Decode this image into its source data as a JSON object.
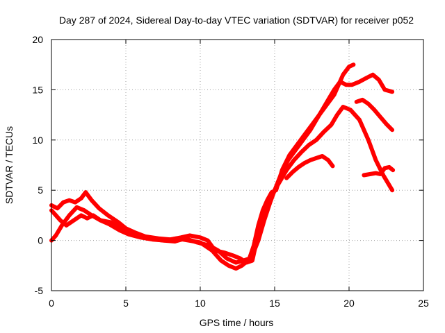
{
  "chart_data": {
    "type": "scatter",
    "title": "Day 287 of 2024, Sidereal Day-to-day VTEC variation (SDTVAR) for receiver p052",
    "xlabel": "GPS time / hours",
    "ylabel": "SDTVAR / TECUs",
    "xlim": [
      0,
      25
    ],
    "ylim": [
      -5,
      20
    ],
    "xticks": [
      "0",
      "5",
      "10",
      "15",
      "20",
      "25"
    ],
    "yticks": [
      "-5",
      "0",
      "5",
      "10",
      "15",
      "20"
    ],
    "xtick_values": [
      0,
      5,
      10,
      15,
      20,
      25
    ],
    "ytick_values": [
      -5,
      0,
      5,
      10,
      15,
      20
    ],
    "grid": true,
    "marker": "+",
    "color": "#ff0000",
    "series": [
      {
        "name": "track-1",
        "x": [
          0.0,
          0.3,
          0.7,
          1.2,
          1.7,
          2.2,
          2.7,
          3.3,
          4.0,
          4.7,
          5.5,
          6.5,
          7.5,
          8.3,
          9.0,
          9.8,
          10.6,
          11.2,
          11.8,
          12.4,
          12.9,
          13.3,
          13.6,
          13.9,
          14.2,
          14.5,
          14.8,
          15.1,
          15.5,
          16.0,
          16.5,
          17.0,
          17.5,
          18.0,
          18.5,
          19.0,
          19.3,
          19.6,
          20.0,
          20.3
        ],
        "y": [
          0.0,
          0.5,
          1.5,
          2.5,
          3.3,
          3.0,
          2.5,
          2.0,
          1.8,
          1.2,
          0.6,
          0.2,
          0.0,
          -0.1,
          0.2,
          -0.2,
          -0.5,
          -1.0,
          -1.8,
          -2.2,
          -2.0,
          -1.8,
          -0.5,
          1.5,
          3.0,
          4.0,
          4.8,
          5.0,
          7.0,
          8.5,
          9.5,
          10.5,
          11.5,
          12.5,
          13.5,
          14.5,
          15.5,
          16.5,
          17.3,
          17.5
        ]
      },
      {
        "name": "track-2",
        "x": [
          0.0,
          0.4,
          0.8,
          1.2,
          1.6,
          2.0,
          2.3,
          2.7,
          3.2,
          3.8,
          4.5,
          5.0,
          5.6,
          6.3,
          7.2,
          8.0,
          8.7,
          9.3,
          10.0,
          10.5,
          11.0,
          11.6,
          12.2,
          12.7,
          13.1,
          13.5,
          13.8,
          14.1,
          14.4,
          14.7,
          15.0,
          15.4,
          15.9,
          16.4,
          16.9,
          17.4,
          17.8,
          18.2,
          18.6,
          19.0,
          19.4,
          19.8,
          20.2,
          20.7,
          21.2,
          21.6,
          22.0,
          22.4,
          22.9
        ],
        "y": [
          3.5,
          3.2,
          3.8,
          4.0,
          3.8,
          4.2,
          4.8,
          4.0,
          3.2,
          2.5,
          1.8,
          1.2,
          0.8,
          0.4,
          0.2,
          0.1,
          0.3,
          0.5,
          0.3,
          0.0,
          -1.0,
          -1.2,
          -1.5,
          -1.8,
          -2.2,
          -2.0,
          0.0,
          2.0,
          3.5,
          4.5,
          5.0,
          6.5,
          8.0,
          9.0,
          10.0,
          11.0,
          12.0,
          13.0,
          14.0,
          15.0,
          15.8,
          15.5,
          15.5,
          15.8,
          16.2,
          16.5,
          16.0,
          15.0,
          14.8
        ]
      },
      {
        "name": "track-3",
        "x": [
          0.0,
          0.3,
          0.6,
          1.0,
          1.5,
          2.0,
          2.4,
          2.8,
          3.3,
          3.9,
          4.6,
          5.2,
          6.0,
          6.8,
          7.6,
          8.4,
          9.2,
          10.0,
          10.8,
          11.4,
          11.9,
          12.4,
          12.8,
          13.2,
          13.5,
          13.9,
          14.3,
          14.7,
          15.0,
          15.4,
          15.8,
          16.3,
          16.8,
          17.3,
          17.8,
          18.3,
          18.8,
          19.2,
          19.6,
          20.1,
          20.7,
          21.3,
          21.8,
          22.3,
          22.9
        ],
        "y": [
          3.0,
          2.5,
          2.0,
          1.5,
          2.0,
          2.5,
          2.2,
          2.5,
          2.0,
          1.6,
          1.0,
          0.6,
          0.3,
          0.1,
          0.0,
          0.2,
          0.0,
          -0.2,
          -1.0,
          -2.0,
          -2.5,
          -2.8,
          -2.5,
          -2.0,
          -1.5,
          0.0,
          2.0,
          3.8,
          5.0,
          6.0,
          7.0,
          8.0,
          8.8,
          9.5,
          10.0,
          10.8,
          11.5,
          12.5,
          13.3,
          13.0,
          12.0,
          10.0,
          8.0,
          6.5,
          5.0
        ]
      },
      {
        "name": "track-4",
        "x": [
          15.8,
          16.2,
          16.6,
          17.0,
          17.4,
          17.8,
          18.2,
          18.6,
          18.9
        ],
        "y": [
          6.2,
          6.8,
          7.3,
          7.7,
          8.0,
          8.2,
          8.4,
          8.0,
          7.4
        ]
      },
      {
        "name": "track-5",
        "x": [
          20.5,
          20.9,
          21.3,
          21.7,
          22.1,
          22.5,
          22.9
        ],
        "y": [
          13.8,
          14.0,
          13.6,
          13.0,
          12.3,
          11.6,
          11.0
        ]
      },
      {
        "name": "track-6",
        "x": [
          21.0,
          21.4,
          21.8,
          22.1,
          22.4,
          22.7,
          22.95
        ],
        "y": [
          6.5,
          6.6,
          6.7,
          6.6,
          7.2,
          7.3,
          7.0
        ]
      }
    ]
  }
}
